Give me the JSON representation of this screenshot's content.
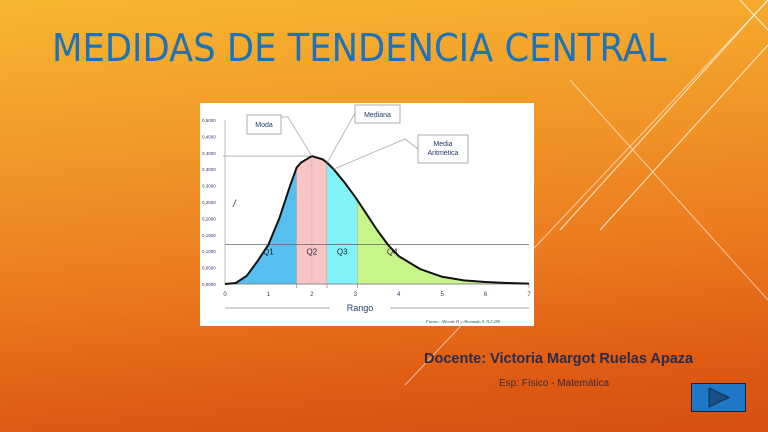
{
  "slide": {
    "title": "MEDIDAS DE TENDENCIA CENTRAL",
    "docente_label": "Docente:  Victoria Margot Ruelas Apaza",
    "especialidad": "Esp: Físico - Matemática",
    "next_button_icon": "play-triangle-icon",
    "colors": {
      "title": "#1d72b8",
      "button": "#1f77c8",
      "background_top": "#f7b731",
      "background_bottom": "#d84f10"
    }
  },
  "chart_data": {
    "type": "area",
    "xlabel": "Rango",
    "ylabel": "",
    "y_axis_marker": "/",
    "xlim": [
      0,
      7
    ],
    "ylim": [
      0,
      0.5
    ],
    "x_ticks": [
      "0",
      "1",
      "2",
      "3",
      "4",
      "5",
      "6",
      "7"
    ],
    "y_ticks": [
      "0,0000",
      "0,0500",
      "0,1000",
      "0,1500",
      "0,2000",
      "0,2500",
      "0,3000",
      "0,3500",
      "0,4000",
      "0,4500",
      "0,5000"
    ],
    "curve": {
      "x": [
        0,
        0.25,
        0.5,
        0.75,
        1,
        1.25,
        1.5,
        1.65,
        1.75,
        2,
        2.25,
        2.35,
        2.5,
        2.75,
        3,
        3.05,
        3.25,
        3.5,
        3.75,
        4,
        4.5,
        5,
        5.5,
        6,
        6.5,
        7
      ],
      "y": [
        0,
        0.003,
        0.025,
        0.07,
        0.12,
        0.2,
        0.3,
        0.355,
        0.37,
        0.39,
        0.38,
        0.37,
        0.35,
        0.31,
        0.265,
        0.255,
        0.215,
        0.165,
        0.12,
        0.085,
        0.045,
        0.022,
        0.011,
        0.006,
        0.003,
        0.001
      ]
    },
    "quartiles": [
      {
        "label": "Q1",
        "from": 0,
        "to": 1.65,
        "color": "#55bff0"
      },
      {
        "label": "Q2",
        "from": 1.65,
        "to": 2.35,
        "color": "#f8c4c4"
      },
      {
        "label": "Q3",
        "from": 2.35,
        "to": 3.05,
        "color": "#7ff3f8"
      },
      {
        "label": "Q4",
        "from": 3.05,
        "to": 7,
        "color": "#c8f58a"
      }
    ],
    "annotations": [
      {
        "label": "Moda",
        "x": 2.0
      },
      {
        "label": "Mediana",
        "x": 2.35
      },
      {
        "label": "Media Aritmética",
        "x": 2.5
      }
    ],
    "source": "Fuente: Allende H y Ahumada S, ILI-280"
  }
}
